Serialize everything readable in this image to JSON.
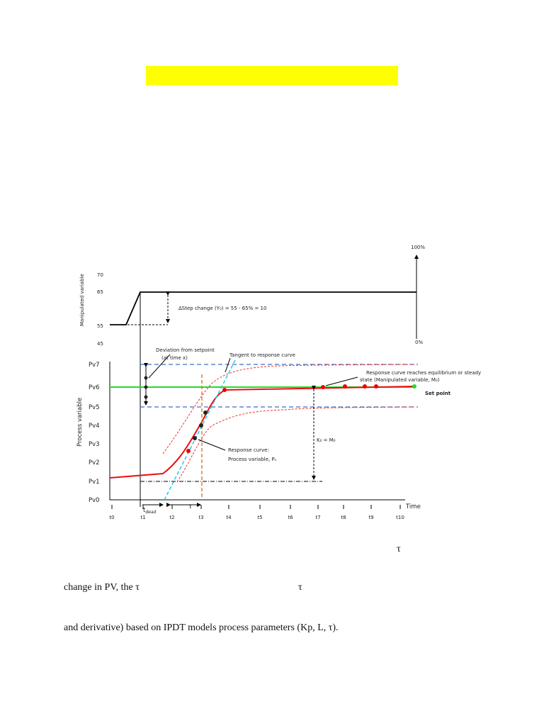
{
  "figure": {
    "mv_axis": {
      "label": "Manipulated variable",
      "ticks": [
        "70",
        "65",
        "55",
        "45"
      ],
      "top": "100%",
      "bottom": "0%"
    },
    "step_label": "ΔStep change (Y₀) = 55 - 65% = 10",
    "pv_axis": {
      "label": "Process variable",
      "ticks": [
        "Pv7",
        "Pv6",
        "Pv5",
        "Pv4",
        "Pv3",
        "Pv2",
        "Pv1",
        "Pv0"
      ]
    },
    "time_axis": {
      "label": "Time",
      "ticks": [
        "t0",
        "t1",
        "t2",
        "t3",
        "t4",
        "t5",
        "t6",
        "t7",
        "t8",
        "t9",
        "t10"
      ]
    },
    "annotations": {
      "deviation": [
        "Deviation from setpoint",
        "(at time x)"
      ],
      "tangent": "Tangent to response curve",
      "equilibrium": [
        "Response curve reaches equilibrium or steady",
        "state (Manipulated variable, M₀)"
      ],
      "setpoint": "Set point",
      "response": [
        "Response curve:",
        "Process variable, Pᵥ"
      ],
      "gain": "K₀ = M₀",
      "dead_time": {
        "symbol": "t",
        "subscript": "dead"
      },
      "tau": "τ"
    }
  },
  "body": {
    "lines": [
      [
        "τ"
      ],
      [
        "change in PV, the τ",
        "τ"
      ],
      [
        "and derivative) based on IPDT models process parameters (Kp, L, τ)."
      ]
    ]
  }
}
